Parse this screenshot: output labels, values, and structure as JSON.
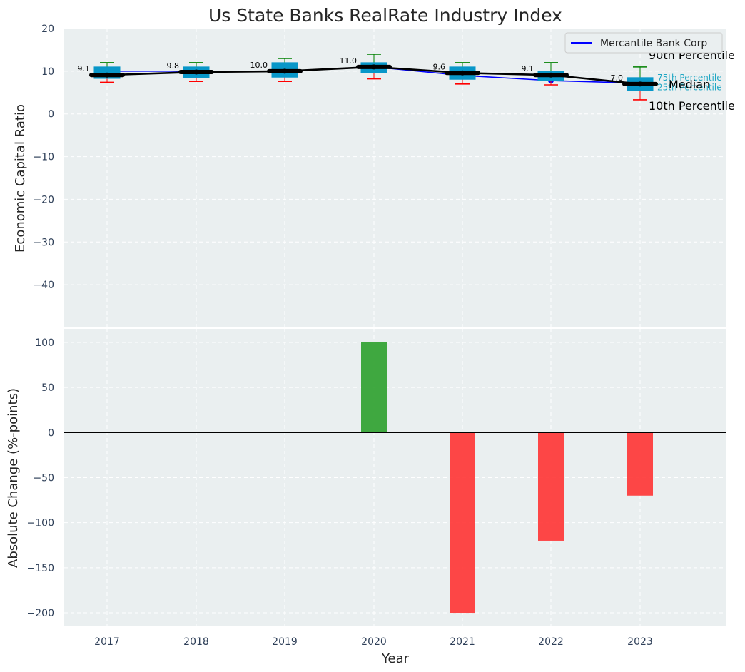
{
  "colors": {
    "panel_bg": "#eaeff0",
    "grid": "#ffffff",
    "box_fill": "#0897c9",
    "box_edge": "#0897c9",
    "median": "#000000",
    "whisker_upper": "#008000",
    "whisker_lower": "#ff0000",
    "company_line": "#0000ff",
    "bar_positive": "#2ca02c",
    "bar_negative": "#ff3333",
    "zero_line": "#000000",
    "percentile_label": "#1fa7c4"
  },
  "chart_data": [
    {
      "type": "box",
      "title": "Us State Banks RealRate Industry Index",
      "xlabel": "",
      "ylabel": "Economic Capital Ratio",
      "categories": [
        "2017",
        "2018",
        "2019",
        "2020",
        "2021",
        "2022",
        "2023"
      ],
      "ylim": [
        -50,
        20
      ],
      "yticks": [
        20,
        10,
        0,
        -10,
        -20,
        -30,
        -40
      ],
      "ytick_labels": [
        "20",
        "10",
        "0",
        "−10",
        "−20",
        "−30",
        "−40"
      ],
      "grid": true,
      "legend": {
        "position": "top-right",
        "entries": [
          "Mercantile Bank Corp"
        ]
      },
      "boxes": [
        {
          "year": "2017",
          "p10": 7.4,
          "p25": 8.3,
          "median": 9.1,
          "p75": 11.0,
          "p90": 12.0
        },
        {
          "year": "2018",
          "p10": 7.6,
          "p25": 8.5,
          "median": 9.8,
          "p75": 11.0,
          "p90": 12.0
        },
        {
          "year": "2019",
          "p10": 7.6,
          "p25": 8.6,
          "median": 10.0,
          "p75": 12.0,
          "p90": 13.0
        },
        {
          "year": "2020",
          "p10": 8.2,
          "p25": 9.6,
          "median": 11.0,
          "p75": 12.0,
          "p90": 14.0
        },
        {
          "year": "2021",
          "p10": 7.0,
          "p25": 8.1,
          "median": 9.6,
          "p75": 11.0,
          "p90": 12.0
        },
        {
          "year": "2022",
          "p10": 6.8,
          "p25": 7.8,
          "median": 9.1,
          "p75": 10.0,
          "p90": 12.0
        },
        {
          "year": "2023",
          "p10": 3.3,
          "p25": 5.4,
          "median": 7.0,
          "p75": 8.5,
          "p90": 11.0
        }
      ],
      "median_labels": [
        "9.1",
        "9.8",
        "10.0",
        "11.0",
        "9.6",
        "9.1",
        "7.0"
      ],
      "series": [
        {
          "name": "Mercantile Bank Corp",
          "values": [
            10.0,
            10.0,
            10.0,
            11.0,
            9.0,
            7.8,
            7.2
          ]
        }
      ],
      "annotations": {
        "p90": "90th Percentile",
        "p75": "75th Percentile",
        "median": "Median",
        "p25": "25th Percentile",
        "p10": "10th Percentile"
      }
    },
    {
      "type": "bar",
      "xlabel": "Year",
      "ylabel": "Absolute Change (%-points)",
      "categories": [
        "2017",
        "2018",
        "2019",
        "2020",
        "2021",
        "2022",
        "2023"
      ],
      "values": [
        0,
        0,
        0,
        100,
        -200,
        -120,
        -70
      ],
      "ylim": [
        -215,
        115
      ],
      "yticks": [
        100,
        50,
        0,
        -50,
        -100,
        -150,
        -200
      ],
      "ytick_labels": [
        "100",
        "50",
        "0",
        "−50",
        "−100",
        "−150",
        "−200"
      ],
      "grid": true
    }
  ]
}
